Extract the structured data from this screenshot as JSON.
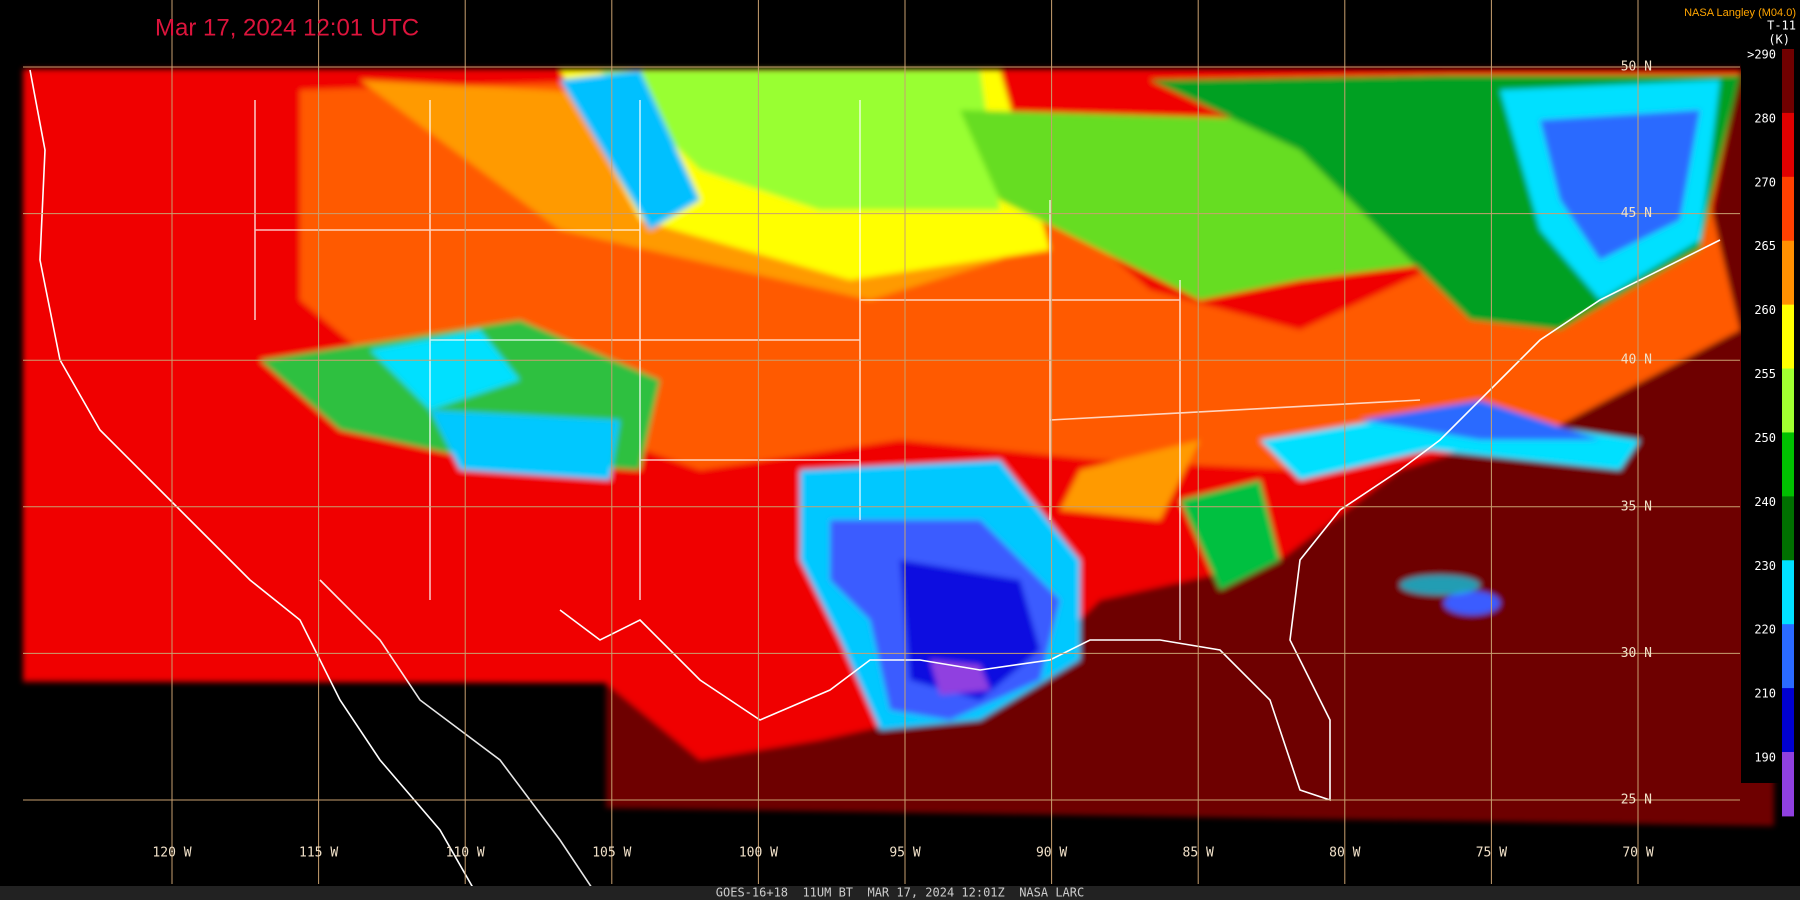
{
  "header": {
    "title": "Mar 17, 2024 12:01 UTC",
    "credit": "NASA Langley (M04.0)"
  },
  "colorbar": {
    "label": "T-11",
    "unit": "(K)",
    "ticks": [
      {
        "value": 290,
        "label": ">290"
      },
      280,
      270,
      265,
      260,
      255,
      250,
      240,
      230,
      220,
      210,
      190
    ]
  },
  "map": {
    "lat_labels": [
      "50 N",
      "45 N",
      "40 N",
      "35 N",
      "30 N",
      "25 N"
    ],
    "lon_labels": [
      "120 W",
      "115 W",
      "110 W",
      "105 W",
      "100 W",
      "95 W",
      "90 W",
      "85 W",
      "80 W",
      "75 W",
      "70 W"
    ]
  },
  "footer": {
    "text": "GOES-16+18  11UM BT  MAR 17, 2024 12:01Z  NASA LARC"
  }
}
